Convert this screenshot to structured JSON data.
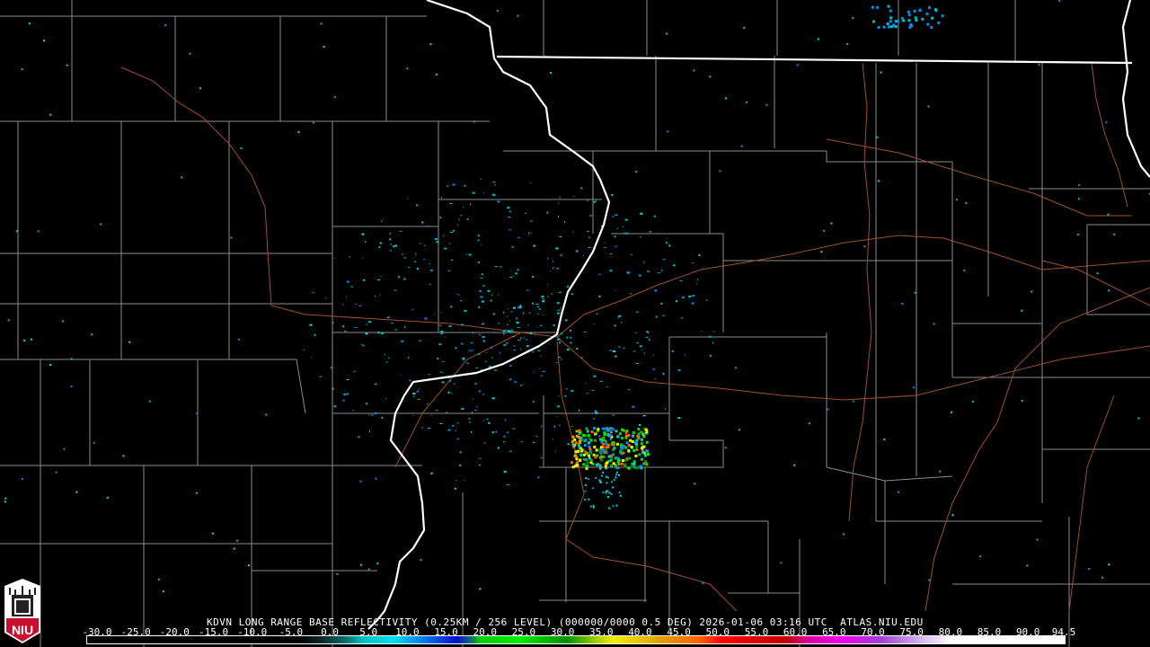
{
  "product_title": "KDVN LONG RANGE BASE REFLECTIVITY (0.25KM / 256 LEVEL) (000000/0000 0.5 DEG) 2026-01-06 03:16 UTC  ATLAS.NIU.EDU",
  "logo_text": "NIU",
  "colorbar": {
    "labels": [
      "-30.0",
      "-25.0",
      "-20.0",
      "-15.0",
      "-10.0",
      "-5.0",
      "0.0",
      "5.0",
      "10.0",
      "15.0",
      "20.0",
      "25.0",
      "30.0",
      "35.0",
      "40.0",
      "45.0",
      "50.0",
      "55.0",
      "60.0",
      "65.0",
      "70.0",
      "75.0",
      "80.0",
      "85.0",
      "90.0",
      "94.5"
    ],
    "stops": [
      {
        "dbz": -30,
        "color": "#000000"
      },
      {
        "dbz": -3,
        "color": "#000000"
      },
      {
        "dbz": 0,
        "color": "#0a2a2a"
      },
      {
        "dbz": 3,
        "color": "#0a7070"
      },
      {
        "dbz": 5,
        "color": "#00c0c0"
      },
      {
        "dbz": 9,
        "color": "#00e0f0"
      },
      {
        "dbz": 12,
        "color": "#0090f0"
      },
      {
        "dbz": 17,
        "color": "#0010d0"
      },
      {
        "dbz": 19,
        "color": "#107070"
      },
      {
        "dbz": 20,
        "color": "#00d000"
      },
      {
        "dbz": 25,
        "color": "#00f000"
      },
      {
        "dbz": 31,
        "color": "#009000"
      },
      {
        "dbz": 34,
        "color": "#80c000"
      },
      {
        "dbz": 37,
        "color": "#f0f000"
      },
      {
        "dbz": 43,
        "color": "#e0a000"
      },
      {
        "dbz": 48,
        "color": "#ff6000"
      },
      {
        "dbz": 51,
        "color": "#ff0000"
      },
      {
        "dbz": 59,
        "color": "#c00000"
      },
      {
        "dbz": 62,
        "color": "#e000a0"
      },
      {
        "dbz": 66,
        "color": "#f000f0"
      },
      {
        "dbz": 71,
        "color": "#a040d0"
      },
      {
        "dbz": 76,
        "color": "#d0b0f0"
      },
      {
        "dbz": 80,
        "color": "#ffffff"
      },
      {
        "dbz": 94.5,
        "color": "#ffffff"
      }
    ]
  },
  "colors": {
    "county_lines": "#8c8c8c",
    "state_lines": "#ffffff",
    "roads": "#a0502a",
    "logo_red": "#c8102e"
  }
}
